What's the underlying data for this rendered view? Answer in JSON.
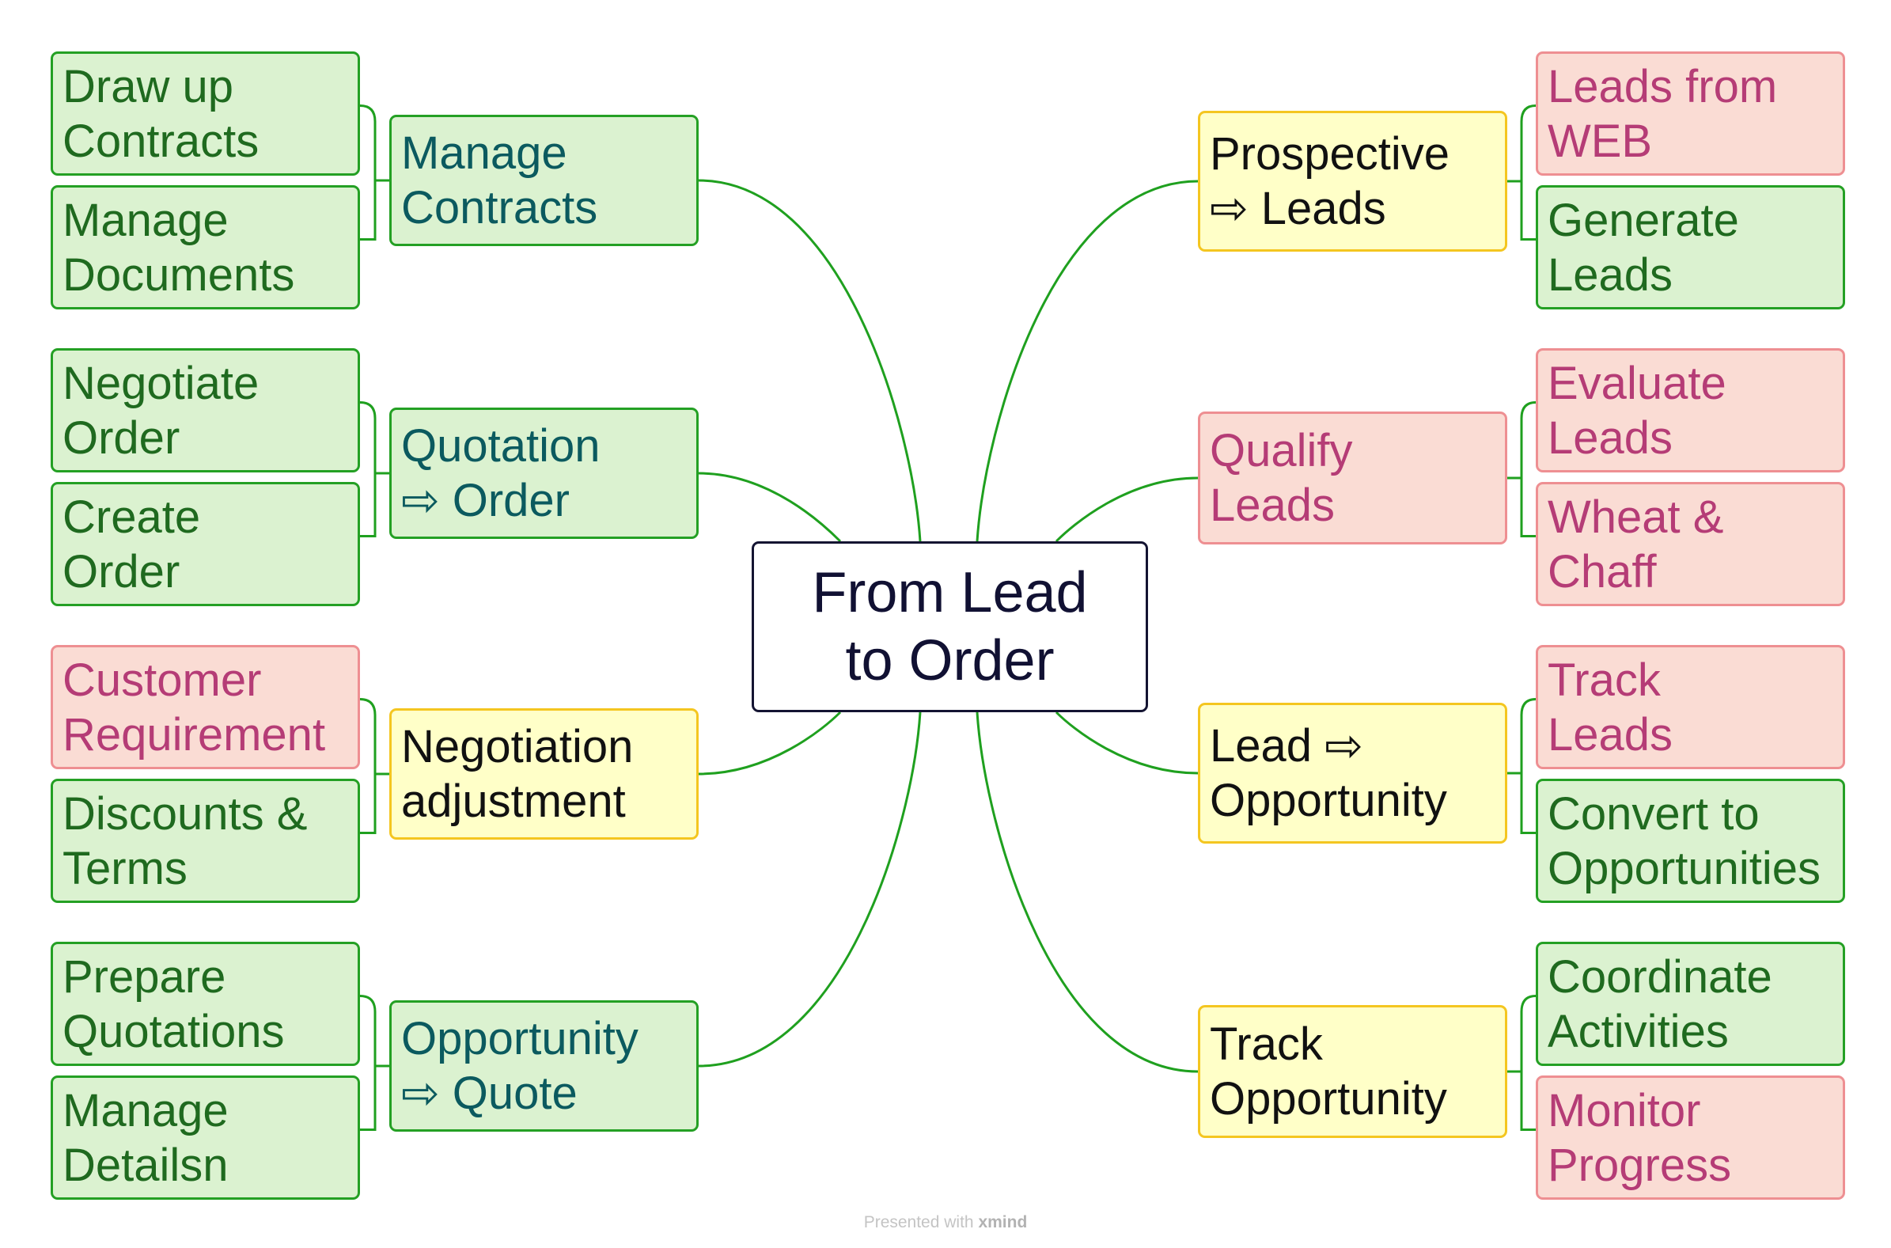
{
  "root": {
    "label": "From Lead\nto Order"
  },
  "left": [
    {
      "label": "Manage\nContracts",
      "style": "green",
      "text": "teal",
      "children": [
        {
          "label": "Draw up\nContracts",
          "style": "green",
          "text": "green"
        },
        {
          "label": "Manage\nDocuments",
          "style": "green",
          "text": "green"
        }
      ]
    },
    {
      "label": "Quotation\n⇨ Order",
      "style": "green",
      "text": "teal",
      "children": [
        {
          "label": "Negotiate\nOrder",
          "style": "green",
          "text": "green"
        },
        {
          "label": "Create\nOrder",
          "style": "green",
          "text": "green"
        }
      ]
    },
    {
      "label": "Negotiation\nadjustment",
      "style": "yellow",
      "text": "black",
      "children": [
        {
          "label": "Customer\nRequirement",
          "style": "pink",
          "text": "pink"
        },
        {
          "label": "Discounts &\nTerms",
          "style": "green",
          "text": "green"
        }
      ]
    },
    {
      "label": "Opportunity\n⇨ Quote",
      "style": "green",
      "text": "teal",
      "children": [
        {
          "label": "Prepare\nQuotations",
          "style": "green",
          "text": "green"
        },
        {
          "label": "Manage\nDetailsn",
          "style": "green",
          "text": "green"
        }
      ]
    }
  ],
  "right": [
    {
      "label": "Prospective\n⇨ Leads",
      "style": "yellow",
      "text": "black",
      "children": [
        {
          "label": "Leads from\nWEB",
          "style": "pink",
          "text": "pink"
        },
        {
          "label": "Generate\nLeads",
          "style": "green",
          "text": "green"
        }
      ]
    },
    {
      "label": "Qualify\nLeads",
      "style": "pink",
      "text": "pink",
      "children": [
        {
          "label": "Evaluate\nLeads",
          "style": "pink",
          "text": "pink"
        },
        {
          "label": "Wheat &\nChaff",
          "style": "pink",
          "text": "pink"
        }
      ]
    },
    {
      "label": "Lead ⇨\nOpportunity",
      "style": "yellow",
      "text": "black",
      "children": [
        {
          "label": "Track\nLeads",
          "style": "pink",
          "text": "pink"
        },
        {
          "label": "Convert to\nOpportunities",
          "style": "green",
          "text": "green"
        }
      ]
    },
    {
      "label": "Track\nOpportunity",
      "style": "yellow",
      "text": "black",
      "children": [
        {
          "label": "Coordinate\nActivities",
          "style": "green",
          "text": "green"
        },
        {
          "label": "Monitor\nProgress",
          "style": "pink",
          "text": "pink"
        }
      ]
    }
  ],
  "colors": {
    "connector": "#1fa01f",
    "green_fill": "#dbf2d0",
    "green_border": "#24a024",
    "pink_fill": "#fadcd4",
    "pink_border": "#ee8f92",
    "yellow_fill": "#ffffc8",
    "yellow_border": "#f4c620",
    "root_border": "#141432"
  },
  "footer": {
    "prefix": "Presented with",
    "brand": "xmind"
  }
}
